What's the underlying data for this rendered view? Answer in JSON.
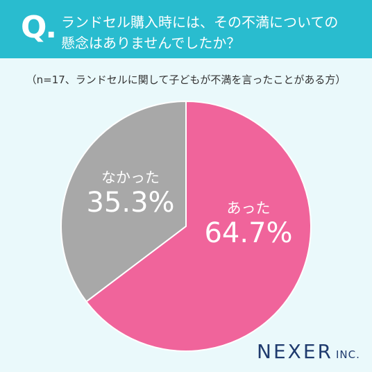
{
  "header": {
    "q_mark": "Q.",
    "question_line1": "ランドセル購入時には、その不満についての",
    "question_line2": "懸念はありませんでしたか？"
  },
  "subtitle": "（n=17、ランドセルに関して子どもが不満を言ったことがある方）",
  "chart_data": {
    "type": "pie",
    "slices": [
      {
        "label": "あった",
        "value": 64.7,
        "display": "64.7%",
        "color": "#f0649b"
      },
      {
        "label": "なかった",
        "value": 35.3,
        "display": "35.3%",
        "color": "#a8a8a8"
      }
    ]
  },
  "logo": {
    "main": "NEXER",
    "suffix": "INC."
  }
}
